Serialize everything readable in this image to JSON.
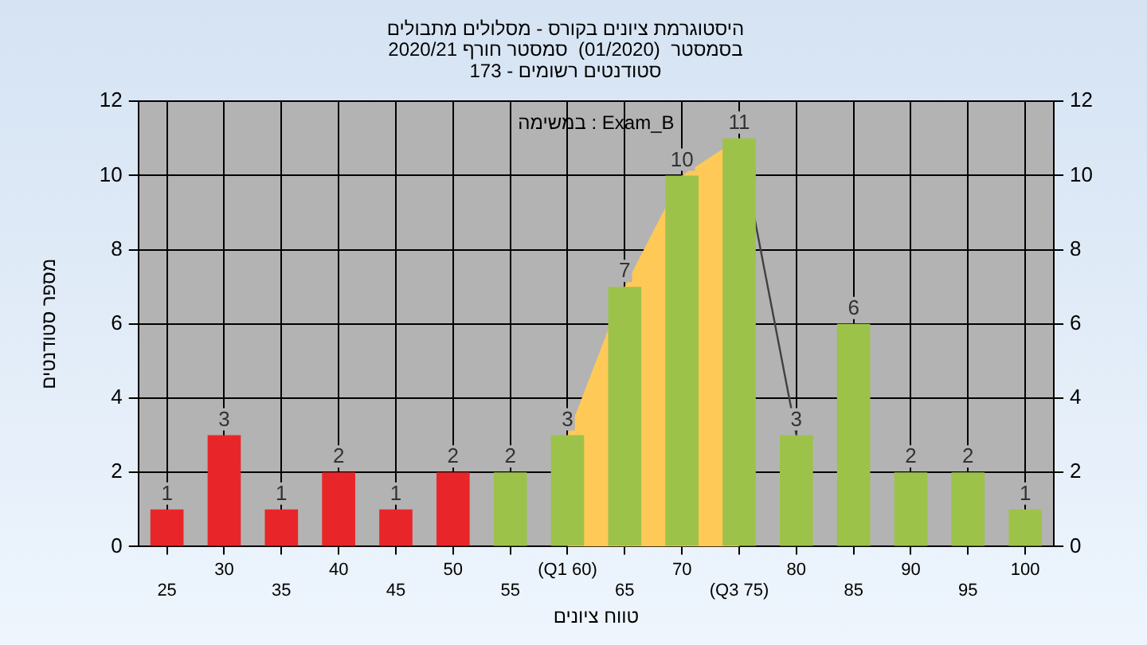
{
  "chart_data": {
    "type": "bar",
    "title": "היסטוגרמת ציונים בקורס - מסלולים מתבולים",
    "subtitle": "בסמסטר  (01/2020)  סמסטר חורף 2020/21\nסטודנטים רשומים - 173",
    "xlabel": "טווח ציונים",
    "ylabel": "מספר סטודנטים",
    "annotations": [
      "במשימה : Exam_B"
    ],
    "categories": [
      "25",
      "30",
      "35",
      "40",
      "45",
      "50",
      "55",
      "(Q1 60)",
      "65",
      "70",
      "(Q3 75)",
      "80",
      "85",
      "90",
      "95",
      "100"
    ],
    "series": [
      {
        "colors": [
          "#e8262a",
          "#e8262a",
          "#e8262a",
          "#e8262a",
          "#e8262a",
          "#e8262a",
          "#9dc24a",
          "#9dc24a",
          "#9dc24a",
          "#9dc24a",
          "#9dc24a",
          "#9dc24a",
          "#9dc24a",
          "#9dc24a",
          "#9dc24a",
          "#9dc24a"
        ],
        "values": [
          1,
          3,
          1,
          2,
          1,
          2,
          2,
          3,
          7,
          10,
          11,
          3,
          6,
          2,
          2,
          1
        ],
        "value_labels": [
          "1",
          "3",
          "1",
          "2",
          "1",
          "2",
          "2",
          "3",
          "7",
          "10",
          "11",
          "3",
          "6",
          "2",
          "2",
          "1"
        ]
      },
      {
        "type": "area",
        "color": "#ffc957",
        "values": [
          null,
          null,
          null,
          null,
          null,
          null,
          null,
          3,
          7,
          10,
          11,
          null,
          null,
          null,
          null,
          null
        ]
      },
      {
        "type": "line",
        "color": "#404040",
        "values": [
          null,
          null,
          null,
          null,
          null,
          null,
          null,
          null,
          null,
          null,
          11,
          3,
          null,
          null,
          null,
          null
        ]
      }
    ],
    "ylim": [
      0,
      12
    ],
    "yticks": [
      0,
      2,
      4,
      6,
      8,
      10,
      12
    ],
    "y2lim": [
      0,
      12
    ],
    "y2ticks": [
      0,
      2,
      4,
      6,
      8,
      10,
      12
    ],
    "grid": true,
    "legend": false
  }
}
